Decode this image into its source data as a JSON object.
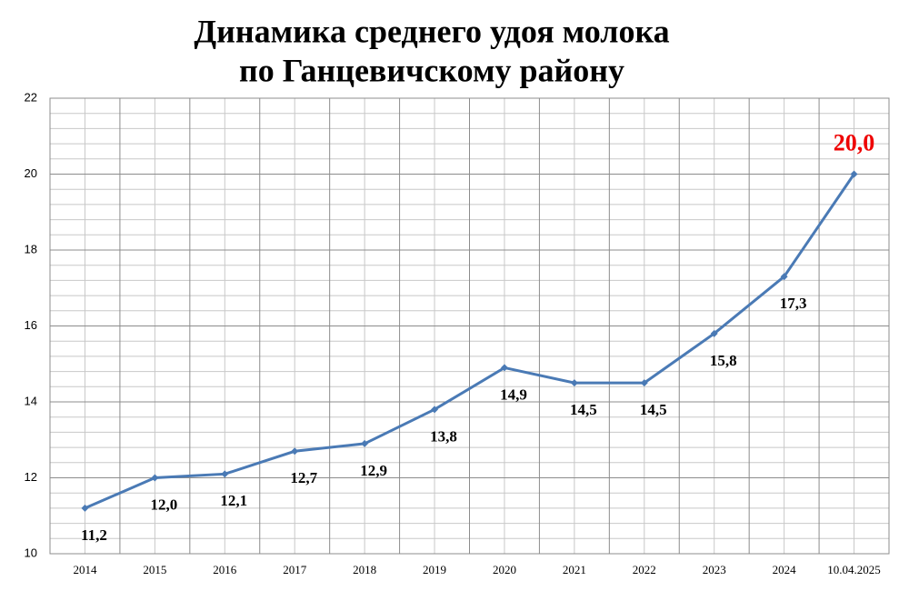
{
  "chart_data": {
    "type": "line",
    "title": [
      "Динамика среднего удоя молока",
      "по Ганцевичскому району"
    ],
    "categories": [
      "2014",
      "2015",
      "2016",
      "2017",
      "2018",
      "2019",
      "2020",
      "2021",
      "2022",
      "2023",
      "2024",
      "10.04.2025"
    ],
    "series": [
      {
        "color": "#4a7ab5",
        "values": [
          11.2,
          12.0,
          12.1,
          12.7,
          12.9,
          13.8,
          14.9,
          14.5,
          14.5,
          15.8,
          17.3,
          20.0
        ],
        "value_labels": [
          "11,2",
          "12,0",
          "12,1",
          "12,7",
          "12,9",
          "13,8",
          "14,9",
          "14,5",
          "14,5",
          "15,8",
          "17,3",
          "20,0"
        ],
        "value_label_colors": [
          "#000000",
          "#000000",
          "#000000",
          "#000000",
          "#000000",
          "#000000",
          "#000000",
          "#000000",
          "#000000",
          "#000000",
          "#000000",
          "#ee0000"
        ]
      }
    ],
    "ylim": [
      10,
      22
    ],
    "yticks": [
      10,
      12,
      14,
      16,
      18,
      20,
      22
    ],
    "grid": true
  }
}
